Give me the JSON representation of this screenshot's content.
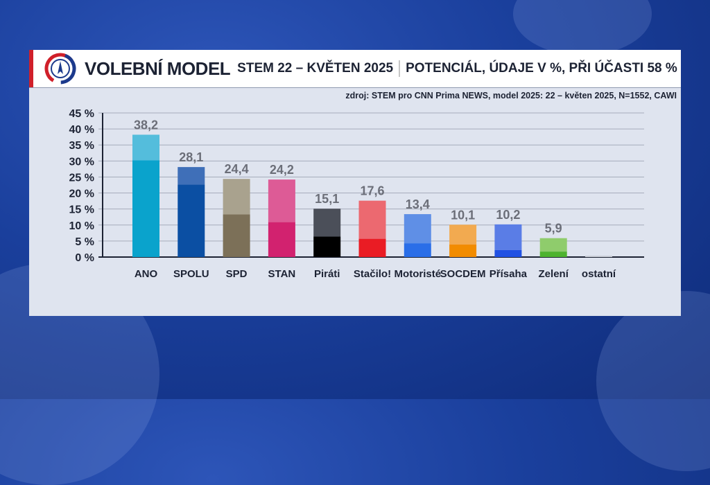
{
  "header": {
    "title_main": "VOLEBNÍ MODEL",
    "title_sub": "STEM 22 – KVĚTEN 2025",
    "title_right": "POTENCIÁL, ÚDAJE V %, PŘI ÚČASTI 58 %"
  },
  "source": "zdroj: STEM pro CNN Prima NEWS, model 2025: 22 – květen 2025, N=1552, CAWI",
  "colors": {
    "accent_red": "#d0202a",
    "logo_blue": "#1c3a8c"
  },
  "chart_data": {
    "type": "bar",
    "y_ticks": [
      "0 %",
      "5 %",
      "10 %",
      "15 %",
      "20 %",
      "25 %",
      "30 %",
      "35 %",
      "40 %",
      "45 %"
    ],
    "ylim": [
      0,
      45
    ],
    "grid": true,
    "categories": [
      "ANO",
      "SPOLU",
      "SPD",
      "STAN",
      "Piráti",
      "Stačilo!",
      "Motoristé",
      "SOCDEM",
      "Přísaha",
      "Zelení",
      "ostatní"
    ],
    "value_labels": [
      "38,2",
      "28,1",
      "24,4",
      "24,2",
      "15,1",
      "17,6",
      "13,4",
      "10,1",
      "10,2",
      "5,9",
      ""
    ],
    "potential": [
      38.2,
      28.1,
      24.4,
      24.2,
      15.1,
      17.6,
      13.4,
      10.1,
      10.2,
      5.9,
      0.4
    ],
    "core": [
      30.2,
      22.6,
      13.3,
      10.9,
      6.4,
      5.7,
      4.3,
      3.9,
      2.2,
      1.7,
      0
    ],
    "colors_core": [
      "#0aa3cc",
      "#0b4fa3",
      "#7c7058",
      "#d2226f",
      "#000000",
      "#ea1c24",
      "#2a6ee8",
      "#f28c00",
      "#2151e3",
      "#4db32f",
      "#c9cdd6"
    ],
    "colors_potential": [
      "#54bddc",
      "#3f6fb8",
      "#a9a28e",
      "#dd5b96",
      "#4b4f59",
      "#ec6970",
      "#5f8fe6",
      "#f2aa50",
      "#5a7de6",
      "#8fcc6c",
      "#c9cdd6"
    ]
  }
}
